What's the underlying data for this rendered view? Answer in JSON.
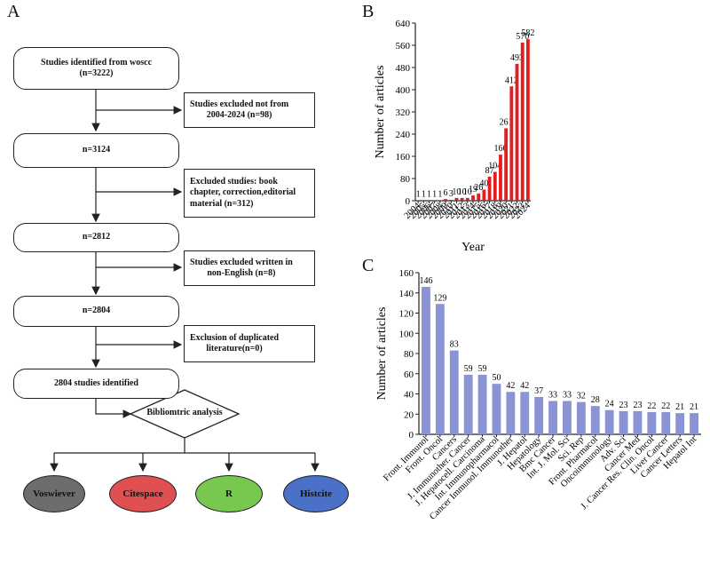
{
  "panels": {
    "a": "A",
    "b": "B",
    "c": "C"
  },
  "flowchart": {
    "main_boxes": [
      {
        "text": "Studies identified from woscc\n(n=3222)"
      },
      {
        "text": "n=3124"
      },
      {
        "text": "n=2812"
      },
      {
        "text": "n=2804"
      },
      {
        "text": "2804 studies identified"
      }
    ],
    "side_boxes": [
      {
        "text": "Studies excluded not from\n2004-2024  (n=98)"
      },
      {
        "text": "Excluded studies: book\nchapter, correction,editorial\nmaterial (n=312)"
      },
      {
        "text": "Studies excluded written in\nnon-English (n=8)"
      },
      {
        "text": "Exclusion of duplicated\nliterature(n=0)"
      }
    ],
    "diamond": "Bibliomtric analysis",
    "tools": [
      {
        "label": "Voswiever",
        "color": "#6d6d6d"
      },
      {
        "label": "Citespace",
        "color": "#e05050"
      },
      {
        "label": "R",
        "color": "#78c850"
      },
      {
        "label": "Histcite",
        "color": "#4a70c8"
      }
    ]
  },
  "chart_data": [
    {
      "type": "bar",
      "title": "",
      "xlabel": "Year",
      "ylabel": "Number of articles",
      "categories": [
        "2004",
        "2005",
        "2006",
        "2007",
        "2008",
        "2009",
        "2010",
        "2011",
        "2012",
        "2013",
        "2014",
        "2015",
        "2016",
        "2017",
        "2018",
        "2019",
        "2020",
        "2021",
        "2022",
        "2023",
        "2024"
      ],
      "values": [
        1,
        1,
        1,
        1,
        1,
        6,
        3,
        10,
        10,
        10,
        19,
        26,
        40,
        87,
        104,
        166,
        261,
        412,
        493,
        570,
        582
      ],
      "ylim": [
        0,
        640
      ],
      "yticks": [
        0,
        80,
        160,
        240,
        320,
        400,
        480,
        560,
        640
      ],
      "color": "#e02020"
    },
    {
      "type": "bar",
      "title": "",
      "xlabel": "",
      "ylabel": "Number of articles",
      "categories": [
        "Front. Immunol",
        "Front. Oncol",
        "Cancers",
        "J. Immunother. Cancer",
        "J. Hepatocell. Carcinoma",
        "Int. Immunopharmacol",
        "Cancer Immunol. Immunother",
        "J. Hepatol",
        "Hepatology",
        "Bmc Cancer",
        "Int. J. Mol. Sci",
        "Sci. Rep",
        "Front. Pharmacol",
        "Oncoimmunology",
        "Adv. Sci",
        "Cancer Med",
        "J. Cancer Res. Clin. Oncol",
        "Liver Cancer",
        "Cancer Letters",
        "Hepatol Int"
      ],
      "values": [
        146,
        129,
        83,
        59,
        59,
        50,
        42,
        42,
        37,
        33,
        33,
        32,
        28,
        24,
        23,
        23,
        22,
        22,
        21,
        21
      ],
      "ylim": [
        0,
        160
      ],
      "yticks": [
        0,
        20,
        40,
        60,
        80,
        100,
        120,
        140,
        160
      ],
      "color": "#8a93d4"
    }
  ]
}
